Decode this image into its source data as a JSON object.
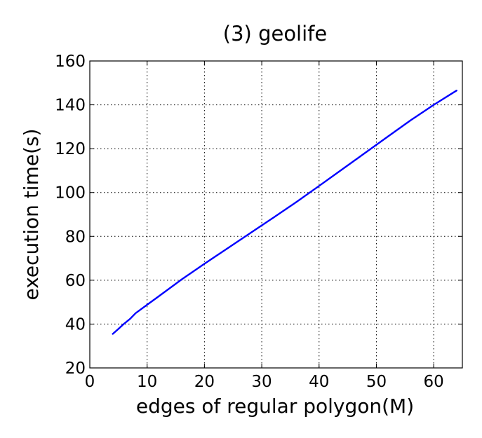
{
  "chart_data": {
    "type": "line",
    "title": "(3) geolife",
    "xlabel": "edges of regular polygon(M)",
    "ylabel": "execution time(s)",
    "xlim": [
      0,
      65
    ],
    "ylim": [
      20,
      160
    ],
    "xticks": [
      0,
      10,
      20,
      30,
      40,
      50,
      60
    ],
    "yticks": [
      20,
      40,
      60,
      80,
      100,
      120,
      140,
      160
    ],
    "grid": true,
    "series": [
      {
        "color": "#0000ff",
        "x": [
          4,
          5,
          6,
          7,
          8,
          10,
          12,
          16,
          20,
          24,
          28,
          32,
          36,
          40,
          44,
          48,
          52,
          56,
          60,
          64
        ],
        "y": [
          35.5,
          37.8,
          40.2,
          42.3,
          45,
          48.8,
          52.6,
          60.3,
          67.5,
          74.5,
          81.5,
          88.5,
          95.6,
          103,
          110.5,
          118,
          125.5,
          133,
          140,
          146.5
        ]
      }
    ]
  }
}
